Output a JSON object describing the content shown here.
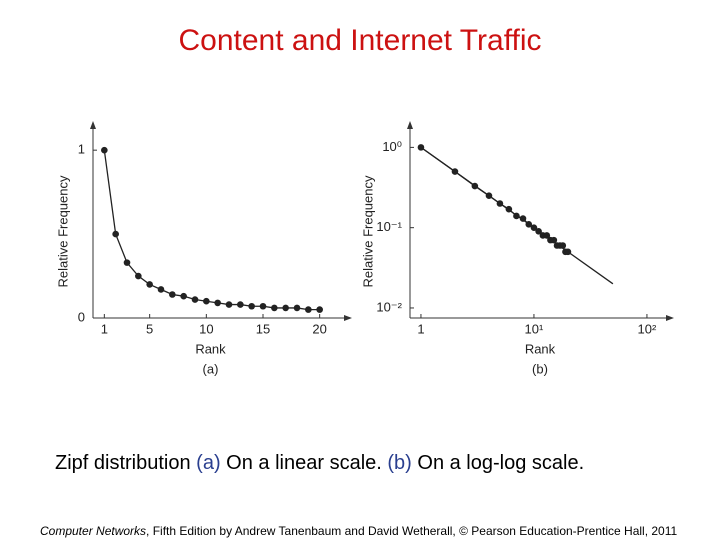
{
  "title": "Content and Internet Traffic",
  "caption": [
    "Zipf distribution ",
    "(a)",
    " On a linear scale. ",
    "(b)",
    " On a log-log scale."
  ],
  "footer": [
    "Computer Networks",
    ", Fifth Edition by Andrew Tanenbaum and David Wetherall, © Pearson Education-Prentice Hall, 2011"
  ],
  "chart_data": [
    {
      "type": "line",
      "xlabel": "Rank",
      "ylabel": "Relative Frequency",
      "subtitle": "(a)",
      "x": [
        1,
        2,
        3,
        4,
        5,
        6,
        7,
        8,
        9,
        10,
        11,
        12,
        13,
        14,
        15,
        16,
        17,
        18,
        19,
        20
      ],
      "series": [
        {
          "color": "#222222",
          "markers": true,
          "values": [
            1,
            0.5,
            0.33,
            0.25,
            0.2,
            0.17,
            0.14,
            0.13,
            0.11,
            0.1,
            0.09,
            0.08,
            0.08,
            0.07,
            0.07,
            0.06,
            0.06,
            0.06,
            0.05,
            0.05
          ]
        }
      ],
      "xlim": [
        0,
        22.5
      ],
      "ylim": [
        0,
        1.15
      ],
      "xticks": [
        1,
        5,
        10,
        15,
        20
      ],
      "yticks": [
        0,
        1
      ]
    },
    {
      "type": "line",
      "xlabel": "Rank",
      "ylabel": "Relative Frequency",
      "subtitle": "(b)",
      "xscale": "log",
      "yscale": "log",
      "x": [
        1,
        2,
        3,
        4,
        5,
        6,
        7,
        8,
        9,
        10,
        11,
        12,
        13,
        14,
        15,
        16,
        17,
        18,
        19,
        20
      ],
      "series": [
        {
          "color": "#222222",
          "markers": true,
          "values": [
            1,
            0.5,
            0.33,
            0.25,
            0.2,
            0.17,
            0.14,
            0.13,
            0.11,
            0.1,
            0.09,
            0.08,
            0.08,
            0.07,
            0.07,
            0.06,
            0.06,
            0.06,
            0.05,
            0.05
          ]
        },
        {
          "color": "#222222",
          "markers": false,
          "x": [
            1,
            50
          ],
          "values": [
            1,
            0.02
          ]
        }
      ],
      "xlim": [
        0.8,
        160
      ],
      "ylim": [
        0.0075,
        1.9
      ],
      "xticks": [
        1,
        {
          "value": 10,
          "label": "10¹"
        },
        {
          "value": 100,
          "label": "10²"
        }
      ],
      "yticks": [
        {
          "value": 1,
          "label": "10⁰"
        },
        {
          "value": 0.1,
          "label": "10⁻¹"
        },
        {
          "value": 0.01,
          "label": "10⁻²"
        }
      ]
    }
  ]
}
